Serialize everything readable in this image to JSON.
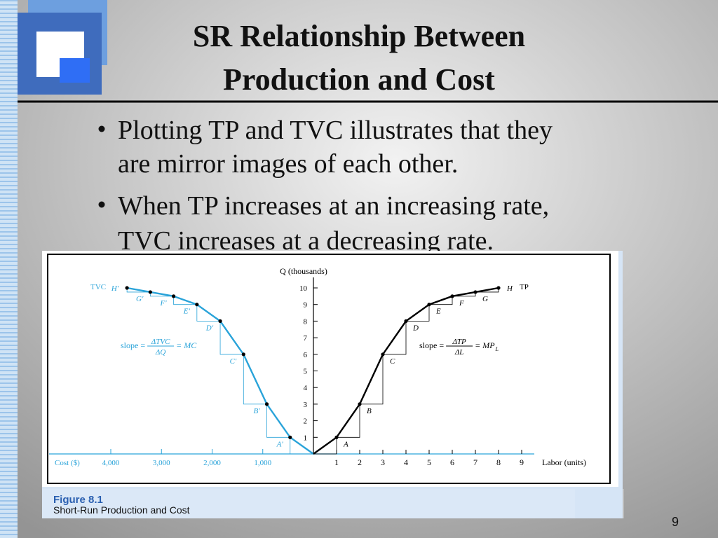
{
  "slide": {
    "title": [
      "SR Relationship Between",
      "Production and Cost"
    ],
    "bullets": [
      [
        "Plotting TP and TVC illustrates that they",
        "are mirror images of each other."
      ],
      [
        "When TP increases at an increasing rate,",
        "TVC increases at a decreasing rate."
      ]
    ],
    "page_number": "9"
  },
  "figure": {
    "caption_title": "Figure 8.1",
    "caption": "Short-Run Production and Cost"
  },
  "chart_data": {
    "type": "line",
    "y_label": "Q (thousands)",
    "x_label": "Labor (units)",
    "x2_label": "Cost ($)",
    "ylim": [
      0,
      10
    ],
    "yticks": [
      1,
      2,
      3,
      4,
      5,
      6,
      7,
      8,
      9,
      10
    ],
    "xlim": [
      0,
      9
    ],
    "xticks": [
      1,
      2,
      3,
      4,
      5,
      6,
      7,
      8,
      9
    ],
    "x2lim": [
      0,
      4000
    ],
    "x2ticks": [
      {
        "value": 1000,
        "label": "1,000"
      },
      {
        "value": 2000,
        "label": "2,000"
      },
      {
        "value": 3000,
        "label": "3,000"
      },
      {
        "value": 4000,
        "label": "4,000"
      }
    ],
    "annotations": [
      {
        "prefix": "slope =",
        "numerator": "ΔTVC",
        "denominator": "ΔQ",
        "suffix": "= MC"
      },
      {
        "prefix": "slope =",
        "numerator": "ΔTP",
        "denominator": "ΔL",
        "suffix": "= MP",
        "suffix_subscript": "L"
      }
    ],
    "series": [
      {
        "name": "TVC",
        "x_axis": "x2",
        "color": "#29a3d9",
        "x": [
          0,
          460,
          920,
          1380,
          1840,
          2300,
          2760,
          3220,
          3680
        ],
        "values": [
          0,
          1,
          3,
          6,
          8,
          9,
          9.5,
          9.75,
          10
        ],
        "point_labels": [
          null,
          "A'",
          "B'",
          "C'",
          "D'",
          "E'",
          "F'",
          "G'",
          "H'"
        ]
      },
      {
        "name": "TP",
        "color": "#000000",
        "x": [
          0,
          1,
          2,
          3,
          4,
          5,
          6,
          7,
          8
        ],
        "values": [
          0,
          1,
          3,
          6,
          8,
          9,
          9.5,
          9.75,
          10
        ],
        "point_labels": [
          null,
          "A",
          "B",
          "C",
          "D",
          "E",
          "F",
          "G",
          "H"
        ]
      }
    ]
  }
}
